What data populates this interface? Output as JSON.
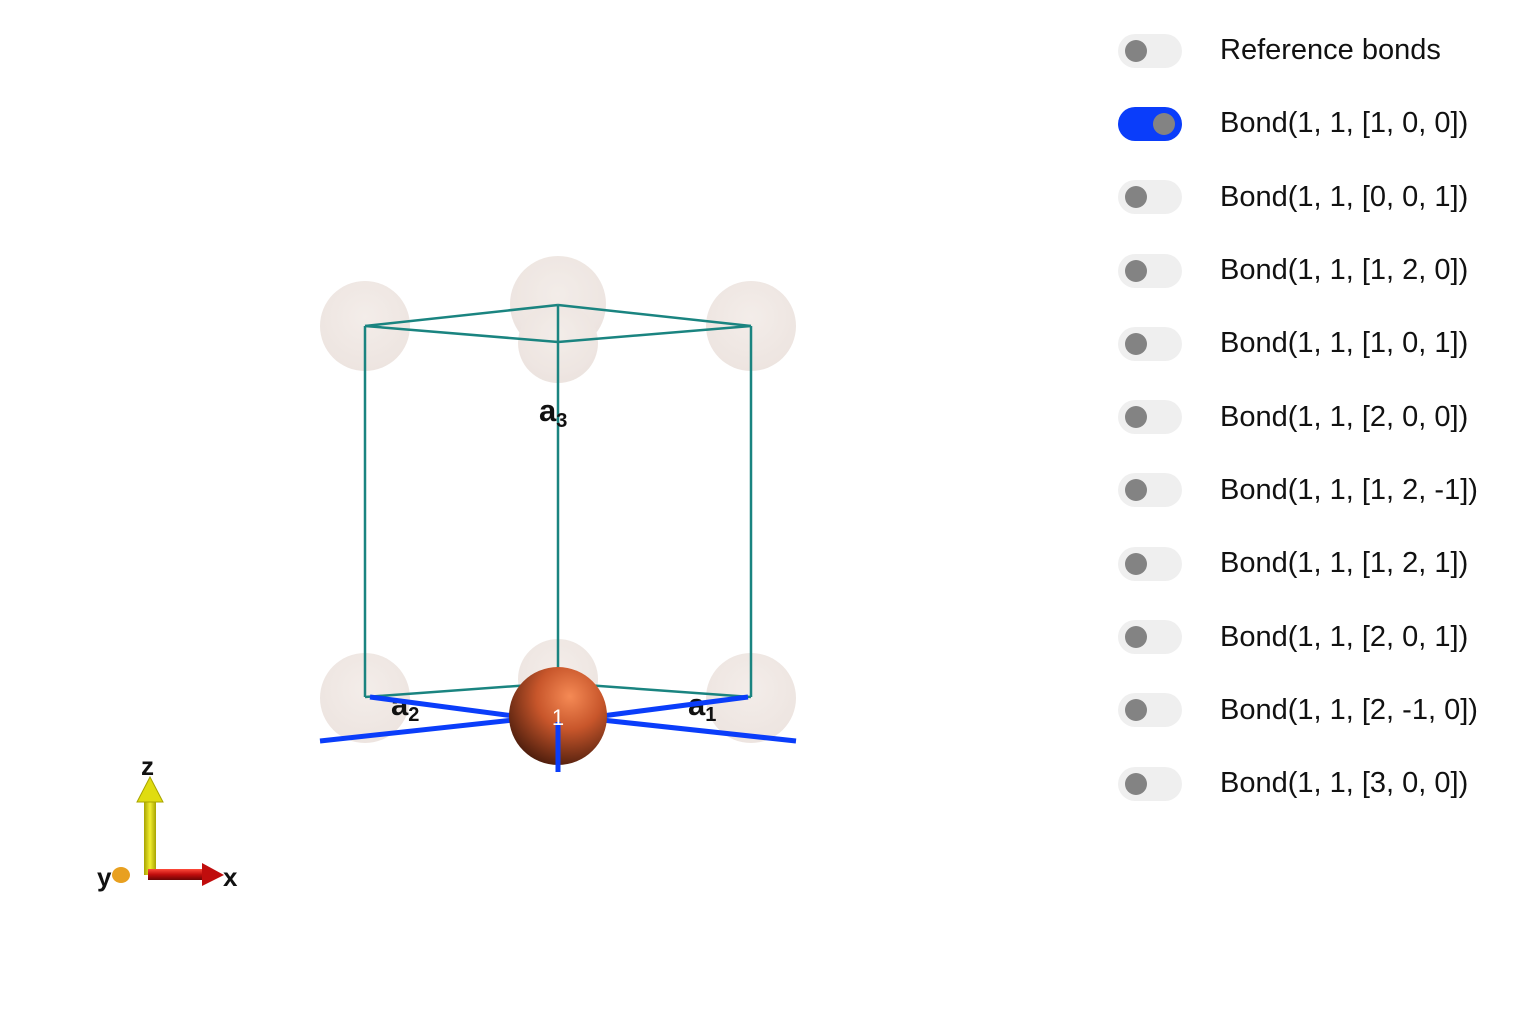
{
  "scene": {
    "lattice_labels": {
      "a1": {
        "base": "a",
        "sub": "1"
      },
      "a2": {
        "base": "a",
        "sub": "2"
      },
      "a3": {
        "base": "a",
        "sub": "3"
      }
    },
    "atom_label": "1",
    "axes": {
      "x": "x",
      "y": "y",
      "z": "z"
    },
    "colors": {
      "cell_edges": "#1a8480",
      "bond": "#0a3dfa",
      "atom": "#c8562b",
      "ghost_atom": "#eadfd9",
      "axis_x": "#d01010",
      "axis_y": "#e8a020",
      "axis_z": "#e0dc10"
    }
  },
  "bond_toggles": [
    {
      "label": "Reference bonds",
      "on": false
    },
    {
      "label": "Bond(1, 1, [1, 0, 0])",
      "on": true
    },
    {
      "label": "Bond(1, 1, [0, 0, 1])",
      "on": false
    },
    {
      "label": "Bond(1, 1, [1, 2, 0])",
      "on": false
    },
    {
      "label": "Bond(1, 1, [1, 0, 1])",
      "on": false
    },
    {
      "label": "Bond(1, 1, [2, 0, 0])",
      "on": false
    },
    {
      "label": "Bond(1, 1, [1, 2, -1])",
      "on": false
    },
    {
      "label": "Bond(1, 1, [1, 2, 1])",
      "on": false
    },
    {
      "label": "Bond(1, 1, [2, 0, 1])",
      "on": false
    },
    {
      "label": "Bond(1, 1, [2, -1, 0])",
      "on": false
    },
    {
      "label": "Bond(1, 1, [3, 0, 0])",
      "on": false
    }
  ]
}
